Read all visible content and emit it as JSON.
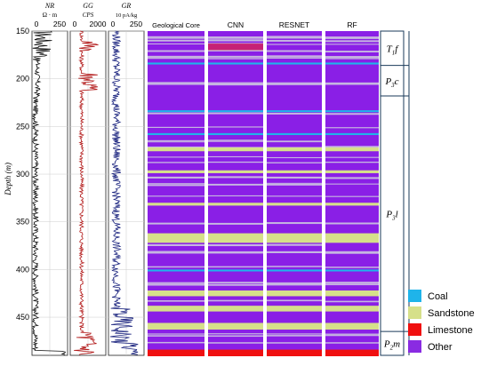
{
  "chart_data": {
    "type": "well-log-lithology",
    "depth_axis": {
      "label": "Depth (m)",
      "range": [
        150,
        490
      ],
      "ticks": [
        150,
        200,
        250,
        300,
        350,
        400,
        450
      ]
    },
    "log_tracks": [
      {
        "id": "nr",
        "name": "NR",
        "unit": "Ω · m",
        "ticks": [
          "0",
          "250"
        ],
        "color": "#111111"
      },
      {
        "id": "gg",
        "name": "GG",
        "unit": "CPS",
        "ticks": [
          "0",
          "2000"
        ],
        "color": "#b31b1b"
      },
      {
        "id": "gr",
        "name": "GR",
        "unit": "10 pA/kg",
        "ticks": [
          "0",
          "250"
        ],
        "color": "#1a237e"
      }
    ],
    "lithology_columns": [
      "Geological Core",
      "CNN",
      "RESNET",
      "RF"
    ],
    "formations": [
      {
        "label": "T",
        "sub": "1",
        "suffix": "f",
        "top": 150,
        "bottom": 186
      },
      {
        "label": "P",
        "sub": "3",
        "suffix": "c",
        "top": 186,
        "bottom": 218
      },
      {
        "label": "P",
        "sub": "3",
        "suffix": "l",
        "top": 218,
        "bottom": 465
      },
      {
        "label": "P",
        "sub": "2",
        "suffix": "m",
        "top": 465,
        "bottom": 490
      }
    ],
    "legend": [
      {
        "name": "Coal",
        "color": "#1fb4ea"
      },
      {
        "name": "Sandstone",
        "color": "#d6e08a"
      },
      {
        "name": "Limestone",
        "color": "#f01010"
      },
      {
        "name": "Other",
        "color": "#8a2be2"
      }
    ],
    "colors": {
      "other": "#8a1fe6",
      "thin_sand": "#c6b6e0",
      "sandstone": "#d6e08a",
      "coal": "#1fb4ea",
      "limestone": "#f01010",
      "red_band": "#d9234f"
    }
  }
}
